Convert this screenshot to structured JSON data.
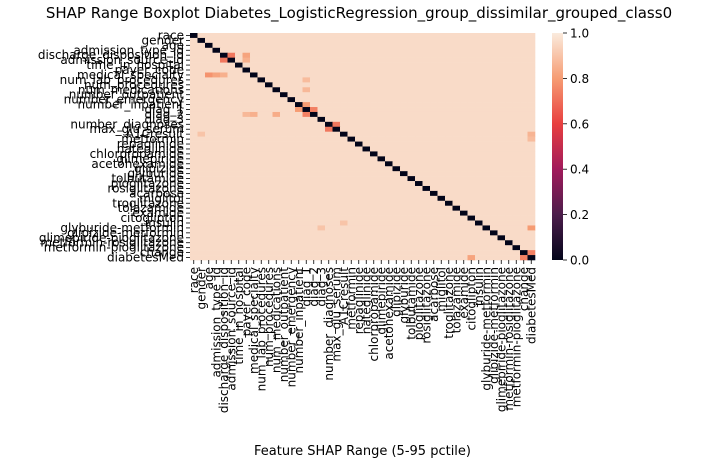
{
  "chart_data": {
    "type": "heatmap",
    "title": "SHAP Range Boxplot Diabetes_LogisticRegression_group_dissimilar_grouped_class0",
    "xlabel": "Feature SHAP Range (5-95 pctile)",
    "ylabel": "",
    "features": [
      "race",
      "gender",
      "age",
      "admission_type_id",
      "discharge_disposition_id",
      "admission_source_id",
      "time_in_hospital",
      "payer_code",
      "medical_specialty",
      "num_lab_procedures",
      "num_procedures",
      "num_medications",
      "number_outpatient",
      "number_emergency",
      "number_inpatient",
      "diag_1",
      "diag_2",
      "diag_3",
      "number_diagnoses",
      "max_glu_serum",
      "A1Cresult",
      "metformin",
      "repaglinide",
      "nateglinide",
      "chlorpropamide",
      "glimepiride",
      "acetohexamide",
      "glipizide",
      "glyburide",
      "tolbutamide",
      "pioglitazone",
      "rosiglitazone",
      "acarbose",
      "miglitol",
      "troglitazone",
      "tolazamide",
      "examide",
      "citoglipton",
      "insulin",
      "glyburide-metformin",
      "glipizide-metformin",
      "glimepiride-pioglitazone",
      "metformin-rosiglitazone",
      "metformin-pioglitazone",
      "change",
      "diabetesMed"
    ],
    "diagonal_value": 0.0,
    "base_value": 0.96,
    "highlights": [
      {
        "row": "discharge_disposition_id",
        "col": "admission_source_id",
        "value": 0.72
      },
      {
        "row": "admission_source_id",
        "col": "discharge_disposition_id",
        "value": 0.72
      },
      {
        "row": "discharge_disposition_id",
        "col": "payer_code",
        "value": 0.82
      },
      {
        "row": "admission_source_id",
        "col": "payer_code",
        "value": 0.85
      },
      {
        "row": "medical_specialty",
        "col": "age",
        "value": 0.78
      },
      {
        "row": "medical_specialty",
        "col": "admission_type_id",
        "value": 0.82
      },
      {
        "row": "medical_specialty",
        "col": "discharge_disposition_id",
        "value": 0.85
      },
      {
        "row": "number_inpatient",
        "col": "diag_1",
        "value": 0.8
      },
      {
        "row": "diag_1",
        "col": "number_inpatient",
        "value": 0.8
      },
      {
        "row": "diag_1",
        "col": "diag_2",
        "value": 0.74
      },
      {
        "row": "diag_2",
        "col": "diag_1",
        "value": 0.74
      },
      {
        "row": "diag_2",
        "col": "num_medications",
        "value": 0.84
      },
      {
        "row": "diag_2",
        "col": "medical_specialty",
        "value": 0.85
      },
      {
        "row": "diag_2",
        "col": "payer_code",
        "value": 0.87
      },
      {
        "row": "max_glu_serum",
        "col": "number_diagnoses",
        "value": 0.72
      },
      {
        "row": "number_diagnoses",
        "col": "max_glu_serum",
        "value": 0.72
      },
      {
        "row": "num_medications",
        "col": "diag_1",
        "value": 0.87
      },
      {
        "row": "num_lab_procedures",
        "col": "diag_1",
        "value": 0.88
      },
      {
        "row": "glyburide-metformin",
        "col": "diabetesMed",
        "value": 0.8
      },
      {
        "row": "diabetesMed",
        "col": "change",
        "value": 0.74
      },
      {
        "row": "change",
        "col": "diabetesMed",
        "value": 0.74
      },
      {
        "row": "diabetesMed",
        "col": "citoglipton",
        "value": 0.82
      },
      {
        "row": "A1Cresult",
        "col": "diabetesMed",
        "value": 0.86
      },
      {
        "row": "metformin",
        "col": "diabetesMed",
        "value": 0.88
      },
      {
        "row": "insulin",
        "col": "A1Cresult",
        "value": 0.9
      },
      {
        "row": "glyburide-metformin",
        "col": "diag_3",
        "value": 0.9
      },
      {
        "row": "A1Cresult",
        "col": "gender",
        "value": 0.9
      }
    ],
    "colorbar": {
      "range": [
        0.0,
        1.0
      ],
      "ticks": [
        "0.0",
        "0.2",
        "0.4",
        "0.6",
        "0.8",
        "1.0"
      ],
      "colormap": "rocket",
      "stops": [
        [
          0.0,
          "#03051a"
        ],
        [
          0.2,
          "#4c1d4b"
        ],
        [
          0.4,
          "#a11a5b"
        ],
        [
          0.6,
          "#e83f3f"
        ],
        [
          0.8,
          "#f69c73"
        ],
        [
          1.0,
          "#faebdd"
        ]
      ]
    }
  }
}
